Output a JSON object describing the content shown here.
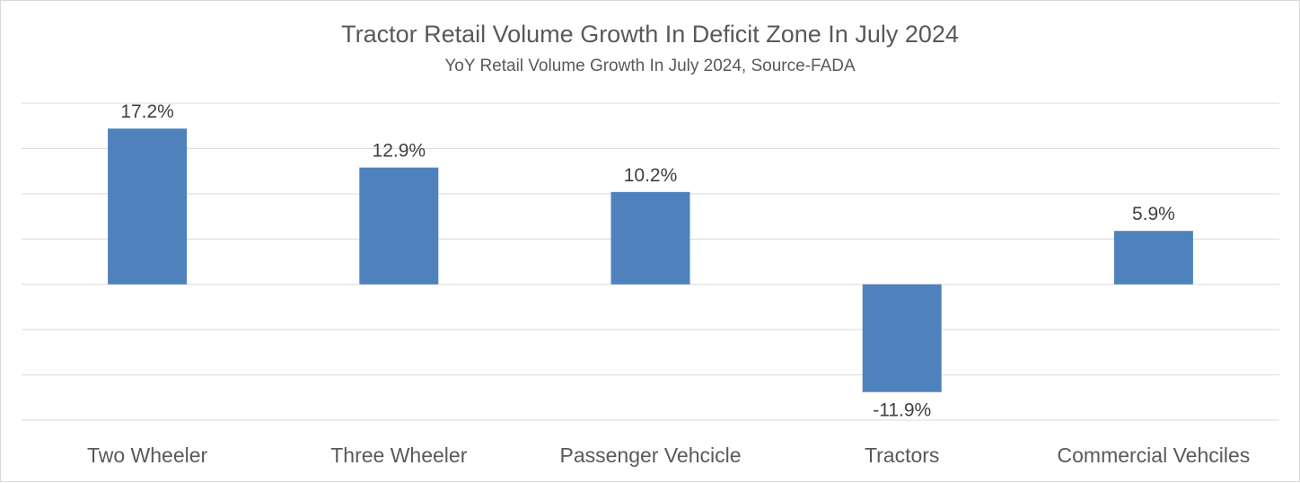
{
  "chart_data": {
    "type": "bar",
    "title": "Tractor Retail Volume Growth In Deficit Zone In July 2024",
    "subtitle": "YoY Retail Volume Growth In July 2024, Source-FADA",
    "categories": [
      "Two Wheeler",
      "Three Wheeler",
      "Passenger Vehcicle",
      "Tractors",
      "Commercial Vehciles"
    ],
    "values": [
      17.2,
      12.9,
      10.2,
      -11.9,
      5.9
    ],
    "data_labels": [
      "17.2%",
      "12.9%",
      "10.2%",
      "-11.9%",
      "5.9%"
    ],
    "ylim": [
      -15,
      20
    ],
    "gridlines": true,
    "xlabel": "",
    "ylabel": "",
    "bar_color": "#4f81bd"
  }
}
